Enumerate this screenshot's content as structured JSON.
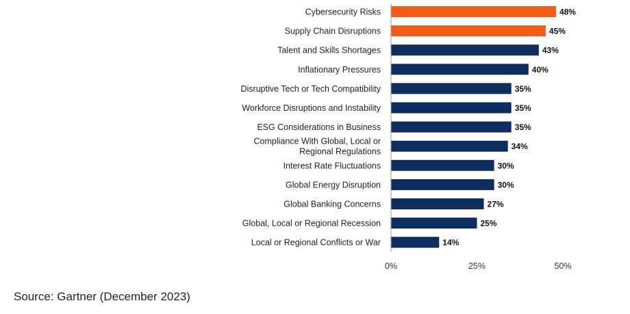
{
  "chart_data": {
    "type": "bar",
    "orientation": "horizontal",
    "categories": [
      "Cybersecurity Risks",
      "Supply Chain Disruptions",
      "Talent and Skills Shortages",
      "Inflationary Pressures",
      "Disruptive Tech or Tech Compatibility",
      "Workforce Disruptions and Instability",
      "ESG Considerations in Business",
      "Compliance With Global, Local or\nRegional Regulations",
      "Interest Rate Fluctuations",
      "Global Energy Disruption",
      "Global Banking Concerns",
      "Global, Local or Regional Recession",
      "Local or Regional Conflicts or War"
    ],
    "values": [
      48,
      45,
      43,
      40,
      35,
      35,
      35,
      34,
      30,
      30,
      27,
      25,
      14
    ],
    "value_labels": [
      "48%",
      "45%",
      "43%",
      "40%",
      "35%",
      "35%",
      "35%",
      "34%",
      "30%",
      "30%",
      "27%",
      "25%",
      "14%"
    ],
    "highlighted": [
      true,
      true,
      false,
      false,
      false,
      false,
      false,
      false,
      false,
      false,
      false,
      false,
      false
    ],
    "xlim": [
      0,
      50
    ],
    "xticks": [
      0,
      25,
      50
    ],
    "xtick_labels": [
      "0%",
      "25%",
      "50%"
    ],
    "colors": {
      "highlight": "#F25C19",
      "default": "#0D2D5E",
      "axis": "#9A9A9A"
    },
    "grid": false,
    "legend": "none"
  },
  "source": "Source: Gartner (December 2023)"
}
